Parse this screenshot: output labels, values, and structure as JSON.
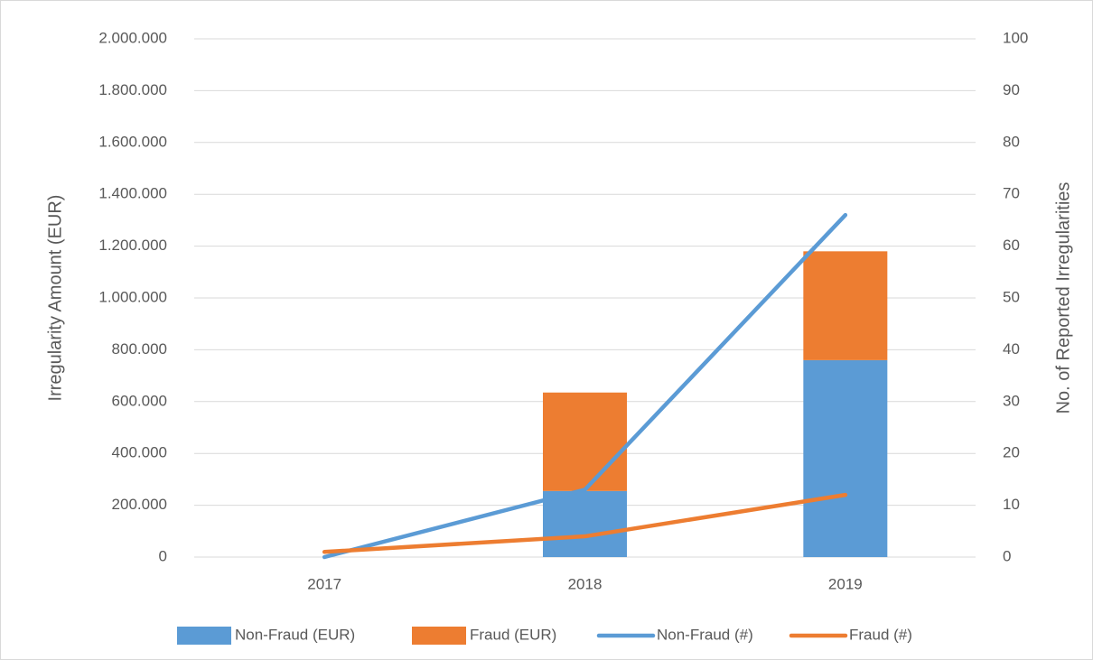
{
  "chart_data": {
    "type": "combo",
    "categories": [
      "2017",
      "2018",
      "2019"
    ],
    "ylabel": "Irregularity Amount (EUR)",
    "y2label": "No. of Reported Irregularities",
    "ylim": [
      0,
      2000000
    ],
    "yticks": [
      0,
      {
        "value": 200000,
        "label": "200.000"
      },
      {
        "value": 400000,
        "label": "400.000"
      },
      {
        "value": 600000,
        "label": "600.000"
      },
      {
        "value": 800000,
        "label": "800.000"
      },
      {
        "value": 1000000,
        "label": "1.000.000"
      },
      {
        "value": 1200000,
        "label": "1.200.000"
      },
      {
        "value": 1400000,
        "label": "1.400.000"
      },
      {
        "value": 1600000,
        "label": "1.600.000"
      },
      {
        "value": 1800000,
        "label": "1.800.000"
      },
      {
        "value": 2000000,
        "label": "2.000.000"
      }
    ],
    "y2lim": [
      0,
      100
    ],
    "y2ticks": [
      0,
      10,
      20,
      30,
      40,
      50,
      60,
      70,
      80,
      90,
      100
    ],
    "grid": true,
    "legend": "bottom",
    "series": [
      {
        "name": "Non-Fraud (EUR)",
        "type": "bar",
        "color": "#5b9bd5",
        "values": [
          0,
          255000,
          760000
        ]
      },
      {
        "name": "Fraud (EUR)",
        "type": "bar",
        "color": "#ed7d31",
        "values": [
          0,
          380000,
          420000
        ]
      },
      {
        "name": "Non-Fraud (#)",
        "type": "line",
        "axis": "y2",
        "color": "#5b9bd5",
        "values": [
          0,
          13,
          66
        ]
      },
      {
        "name": "Fraud (#)",
        "type": "line",
        "axis": "y2",
        "color": "#ed7d31",
        "values": [
          1,
          4,
          12
        ]
      }
    ]
  }
}
